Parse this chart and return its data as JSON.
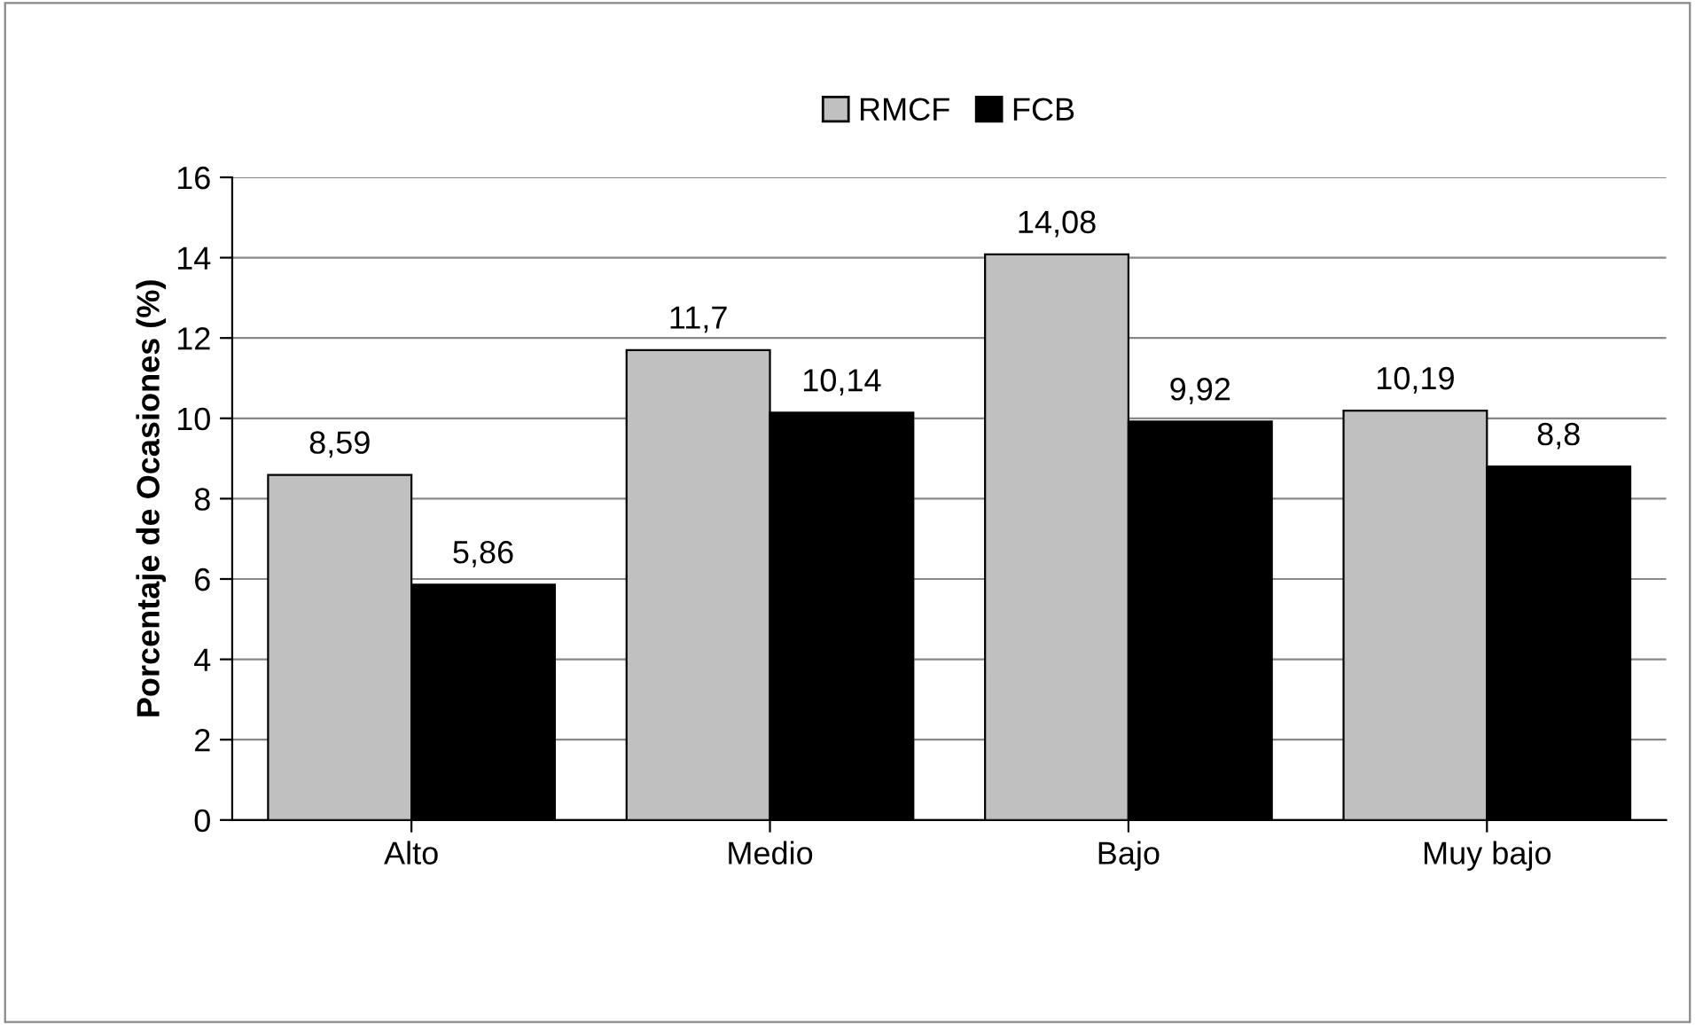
{
  "chart_data": {
    "type": "bar",
    "ylabel": "Porcentaje de Ocasiones (%)",
    "categories": [
      "Alto",
      "Medio",
      "Bajo",
      "Muy bajo"
    ],
    "series": [
      {
        "name": "RMCF",
        "color": "#c0c0c0",
        "values": [
          8.59,
          11.7,
          14.08,
          10.19
        ],
        "value_labels": [
          "8,59",
          "11,7",
          "14,08",
          "10,19"
        ]
      },
      {
        "name": "FCB",
        "color": "#000000",
        "values": [
          5.86,
          10.14,
          9.92,
          8.8
        ],
        "value_labels": [
          "5,86",
          "10,14",
          "9,92",
          "8,8"
        ]
      }
    ],
    "ylim": [
      0,
      16
    ],
    "yticks": [
      0,
      2,
      4,
      6,
      8,
      10,
      12,
      14,
      16
    ],
    "grid": "y",
    "legend": "top"
  }
}
